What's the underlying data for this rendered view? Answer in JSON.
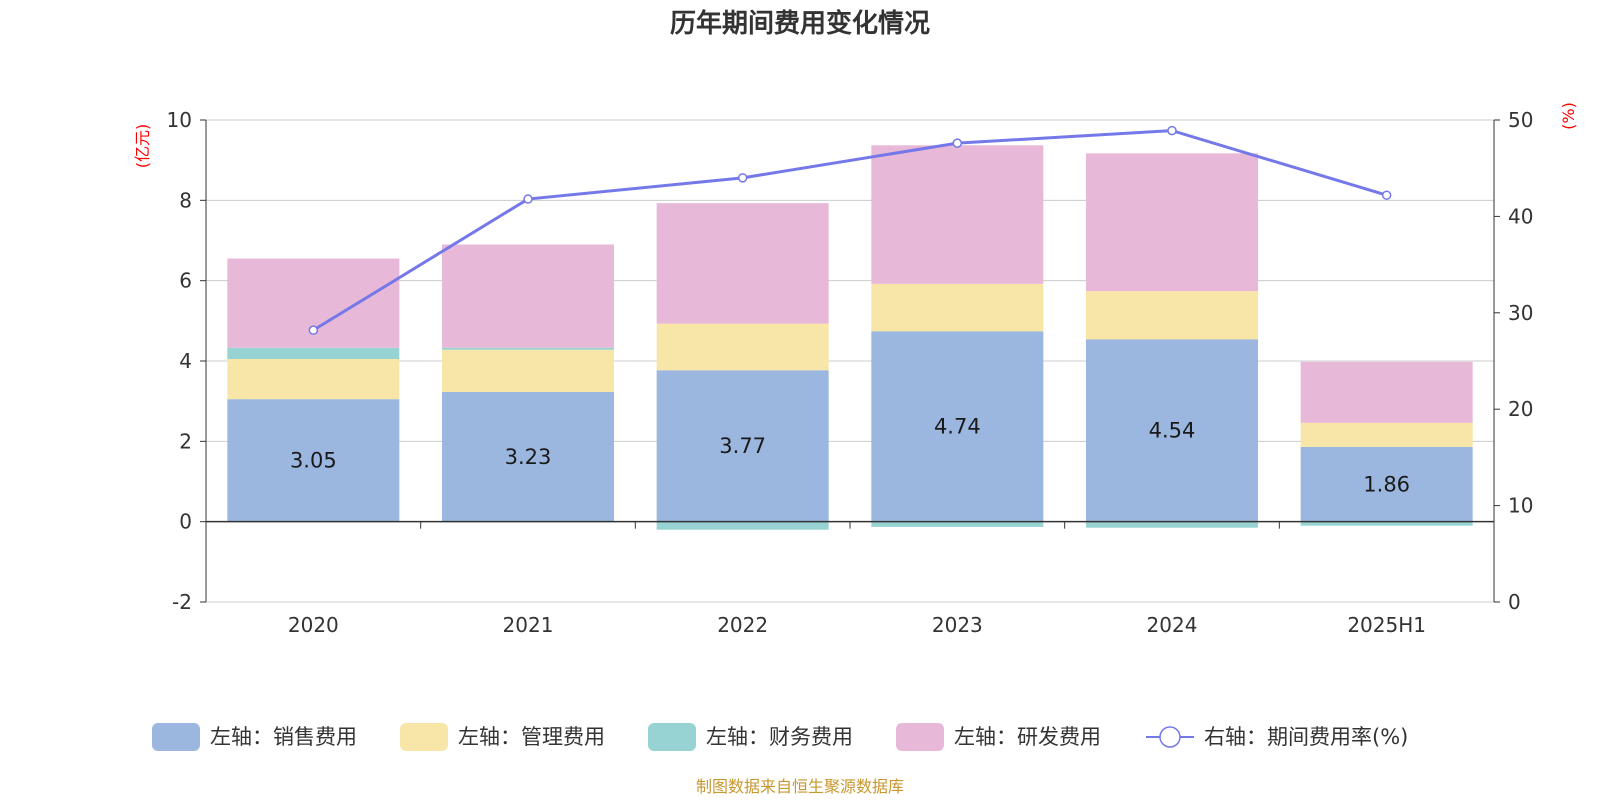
{
  "chart_data": {
    "type": "bar",
    "stacked": true,
    "title": "历年期间费用变化情况",
    "categories": [
      "2020",
      "2021",
      "2022",
      "2023",
      "2024",
      "2025H1"
    ],
    "left_axis": {
      "unit": "(亿元)",
      "ylim": [
        -2,
        10
      ],
      "ticks": [
        "-2",
        "0",
        "2",
        "4",
        "6",
        "8",
        "10"
      ]
    },
    "right_axis": {
      "unit": "(%)",
      "ylim": [
        0,
        50
      ],
      "ticks": [
        "0",
        "10",
        "20",
        "30",
        "40",
        "50"
      ]
    },
    "series": [
      {
        "name": "左轴：销售费用",
        "axis": "left",
        "color": "#9bb7e0",
        "values": [
          3.05,
          3.23,
          3.77,
          4.74,
          4.54,
          1.86
        ],
        "labels": [
          "3.05",
          "3.23",
          "3.77",
          "4.74",
          "4.54",
          "1.86"
        ]
      },
      {
        "name": "左轴：管理费用",
        "axis": "left",
        "color": "#f8e6a8",
        "values": [
          1.0,
          1.05,
          1.16,
          1.18,
          1.2,
          0.6
        ]
      },
      {
        "name": "左轴：财务费用",
        "axis": "left",
        "color": "#97d3d3",
        "values": [
          0.28,
          0.05,
          -0.2,
          -0.13,
          -0.15,
          -0.1
        ]
      },
      {
        "name": "左轴：研发费用",
        "axis": "left",
        "color": "#e8b8d8",
        "values": [
          2.22,
          2.57,
          3.0,
          3.45,
          3.43,
          1.52
        ]
      },
      {
        "name": "右轴：期间费用率(%)",
        "axis": "right",
        "type": "line",
        "color": "#7478e8",
        "values": [
          28.2,
          41.8,
          44.0,
          47.6,
          48.9,
          42.2
        ]
      }
    ],
    "legend_position": "bottom",
    "source": "制图数据来自恒生聚源数据库"
  }
}
